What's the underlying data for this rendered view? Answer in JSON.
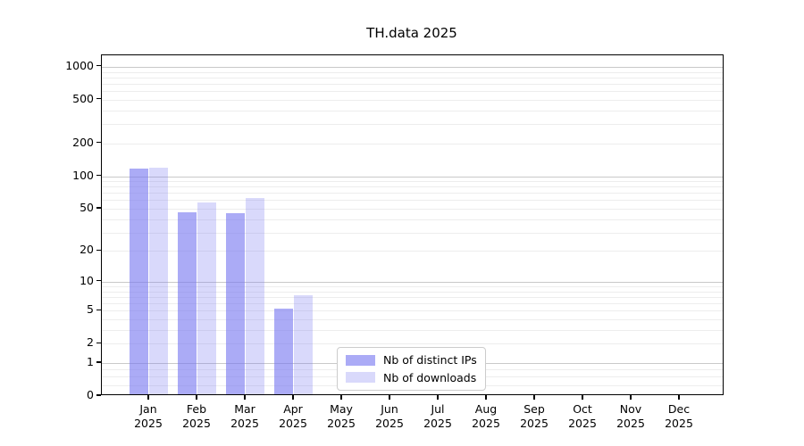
{
  "title": "TH.data 2025",
  "colors": {
    "bar_distinct_ips": "rgba(120,120,240,0.62)",
    "bar_downloads": "rgba(120,120,240,0.28)",
    "grid_major": "#c9c9c9",
    "grid_minor": "#ededed",
    "axis": "#000000",
    "legend_border": "#cccccc"
  },
  "legend": {
    "items": [
      {
        "label": "Nb of distinct IPs",
        "series_key": "distinct_ips"
      },
      {
        "label": "Nb of downloads",
        "series_key": "downloads"
      }
    ]
  },
  "chart_data": {
    "type": "bar",
    "title": "TH.data 2025",
    "categories": [
      "Jan",
      "Feb",
      "Mar",
      "Apr",
      "May",
      "Jun",
      "Jul",
      "Aug",
      "Sep",
      "Oct",
      "Nov",
      "Dec"
    ],
    "category_year": "2025",
    "series": [
      {
        "name": "Nb of distinct IPs",
        "values": [
          114,
          45,
          44,
          5,
          0,
          0,
          0,
          0,
          0,
          0,
          0,
          0
        ]
      },
      {
        "name": "Nb of downloads",
        "values": [
          115,
          55,
          60,
          7,
          0,
          0,
          0,
          0,
          0,
          0,
          0,
          0
        ]
      }
    ],
    "xlabel": "",
    "ylabel": "",
    "yscale": "log1p",
    "yticks": [
      0,
      1,
      2,
      5,
      10,
      20,
      50,
      100,
      200,
      500,
      1000
    ],
    "ylim": [
      0,
      1275
    ],
    "grid": true,
    "legend_position": "lower-center"
  }
}
